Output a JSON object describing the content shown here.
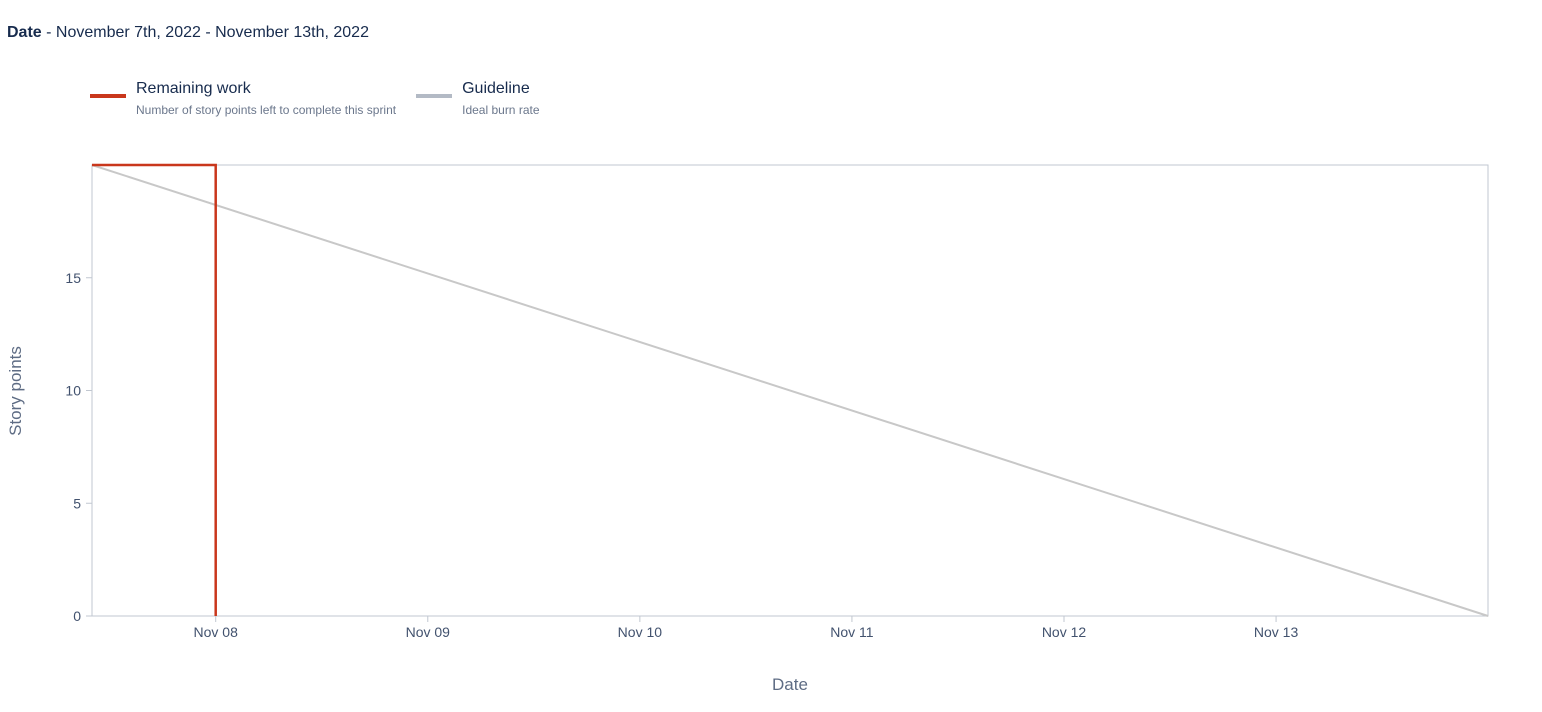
{
  "header": {
    "label": "Date",
    "separator": " - ",
    "range": "November 7th, 2022 - November 13th, 2022"
  },
  "legend": [
    {
      "title": "Remaining work",
      "description": "Number of story points left to complete this sprint",
      "color": "#c9371c"
    },
    {
      "title": "Guideline",
      "description": "Ideal burn rate",
      "color": "#b3bac5"
    }
  ],
  "chart_data": {
    "type": "line",
    "xlabel": "Date",
    "ylabel": "Story points",
    "x_ticks": [
      "Nov 08",
      "Nov 09",
      "Nov 10",
      "Nov 11",
      "Nov 12",
      "Nov 13"
    ],
    "y_ticks": [
      0,
      5,
      10,
      15
    ],
    "xlim": [
      "2022-11-07T10:00",
      "2022-11-13T23:59"
    ],
    "ylim": [
      0,
      20
    ],
    "grid": false,
    "legend_position": "top-left",
    "series": [
      {
        "name": "Remaining work",
        "color": "#c9371c",
        "points": [
          {
            "x": "2022-11-07T10:00",
            "y": 20
          },
          {
            "x": "2022-11-07T24:00",
            "y": 20
          },
          {
            "x": "2022-11-07T24:00",
            "y": 0
          }
        ]
      },
      {
        "name": "Guideline",
        "color": "#c8c8c8",
        "points": [
          {
            "x": "2022-11-07T10:00",
            "y": 20
          },
          {
            "x": "2022-11-13T23:59",
            "y": 0
          }
        ]
      }
    ]
  }
}
